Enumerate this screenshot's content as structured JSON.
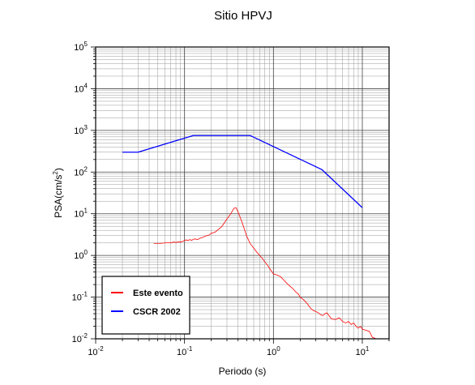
{
  "chart_data": {
    "type": "line",
    "title": "Sitio HPVJ",
    "xlabel": "Periodo (s)",
    "ylabel_base": "PSA(cm/s",
    "ylabel_sup": "2",
    "ylabel_close": ")",
    "xscale": "log",
    "yscale": "log",
    "xlim": [
      0.01,
      20
    ],
    "ylim": [
      0.01,
      100000
    ],
    "grid": true,
    "legend_position": "bottom-left",
    "x_ticks": [
      {
        "base": "10",
        "exp": "-2",
        "value": 0.01
      },
      {
        "base": "10",
        "exp": "-1",
        "value": 0.1
      },
      {
        "base": "10",
        "exp": "0",
        "value": 1
      },
      {
        "base": "10",
        "exp": "1",
        "value": 10
      }
    ],
    "y_ticks": [
      {
        "base": "10",
        "exp": "-2",
        "value": 0.01
      },
      {
        "base": "10",
        "exp": "-1",
        "value": 0.1
      },
      {
        "base": "10",
        "exp": "0",
        "value": 1
      },
      {
        "base": "10",
        "exp": "1",
        "value": 10
      },
      {
        "base": "10",
        "exp": "2",
        "value": 100
      },
      {
        "base": "10",
        "exp": "3",
        "value": 1000
      },
      {
        "base": "10",
        "exp": "4",
        "value": 10000
      },
      {
        "base": "10",
        "exp": "5",
        "value": 100000
      }
    ],
    "series": [
      {
        "name": "Este evento",
        "color": "#ff0000",
        "x": [
          0.045,
          0.05,
          0.055,
          0.06,
          0.065,
          0.07,
          0.075,
          0.08,
          0.085,
          0.09,
          0.095,
          0.1,
          0.105,
          0.11,
          0.115,
          0.12,
          0.13,
          0.14,
          0.15,
          0.16,
          0.17,
          0.18,
          0.19,
          0.2,
          0.22,
          0.24,
          0.26,
          0.28,
          0.3,
          0.32,
          0.34,
          0.36,
          0.38,
          0.4,
          0.42,
          0.44,
          0.46,
          0.48,
          0.5,
          0.55,
          0.6,
          0.65,
          0.7,
          0.75,
          0.8,
          0.85,
          0.9,
          0.95,
          1.0,
          1.1,
          1.2,
          1.3,
          1.4,
          1.5,
          1.6,
          1.7,
          1.8,
          1.9,
          2.0,
          2.2,
          2.4,
          2.6,
          2.8,
          3.0,
          3.2,
          3.4,
          3.6,
          3.8,
          4.0,
          4.5,
          5.0,
          5.5,
          6.0,
          6.5,
          7.0,
          7.5,
          8.0,
          8.5,
          9.0,
          9.5,
          10.0,
          11.0,
          12.0,
          13.0,
          14.0
        ],
        "y": [
          1.95,
          1.95,
          1.95,
          2.0,
          2.0,
          2.0,
          2.1,
          2.05,
          2.1,
          2.1,
          2.15,
          2.3,
          2.35,
          2.3,
          2.4,
          2.3,
          2.5,
          2.4,
          2.6,
          2.7,
          2.9,
          3.0,
          3.1,
          3.4,
          3.6,
          4.2,
          4.8,
          6.0,
          7.5,
          9.0,
          11.0,
          13.5,
          14.0,
          11.0,
          8.5,
          6.5,
          5.0,
          3.8,
          2.9,
          1.9,
          1.5,
          1.2,
          1.0,
          0.85,
          0.7,
          0.6,
          0.5,
          0.42,
          0.36,
          0.34,
          0.31,
          0.26,
          0.22,
          0.19,
          0.17,
          0.15,
          0.13,
          0.12,
          0.1,
          0.085,
          0.07,
          0.055,
          0.048,
          0.045,
          0.042,
          0.038,
          0.036,
          0.04,
          0.042,
          0.03,
          0.029,
          0.032,
          0.026,
          0.024,
          0.026,
          0.022,
          0.024,
          0.02,
          0.018,
          0.02,
          0.017,
          0.016,
          0.015,
          0.0108,
          0.0103
        ]
      },
      {
        "name": "CSCR 2002",
        "color": "#0000ff",
        "x": [
          0.02,
          0.03,
          0.125,
          0.55,
          3.5,
          10.0
        ],
        "y": [
          300,
          300,
          750,
          750,
          115,
          14
        ]
      }
    ]
  }
}
